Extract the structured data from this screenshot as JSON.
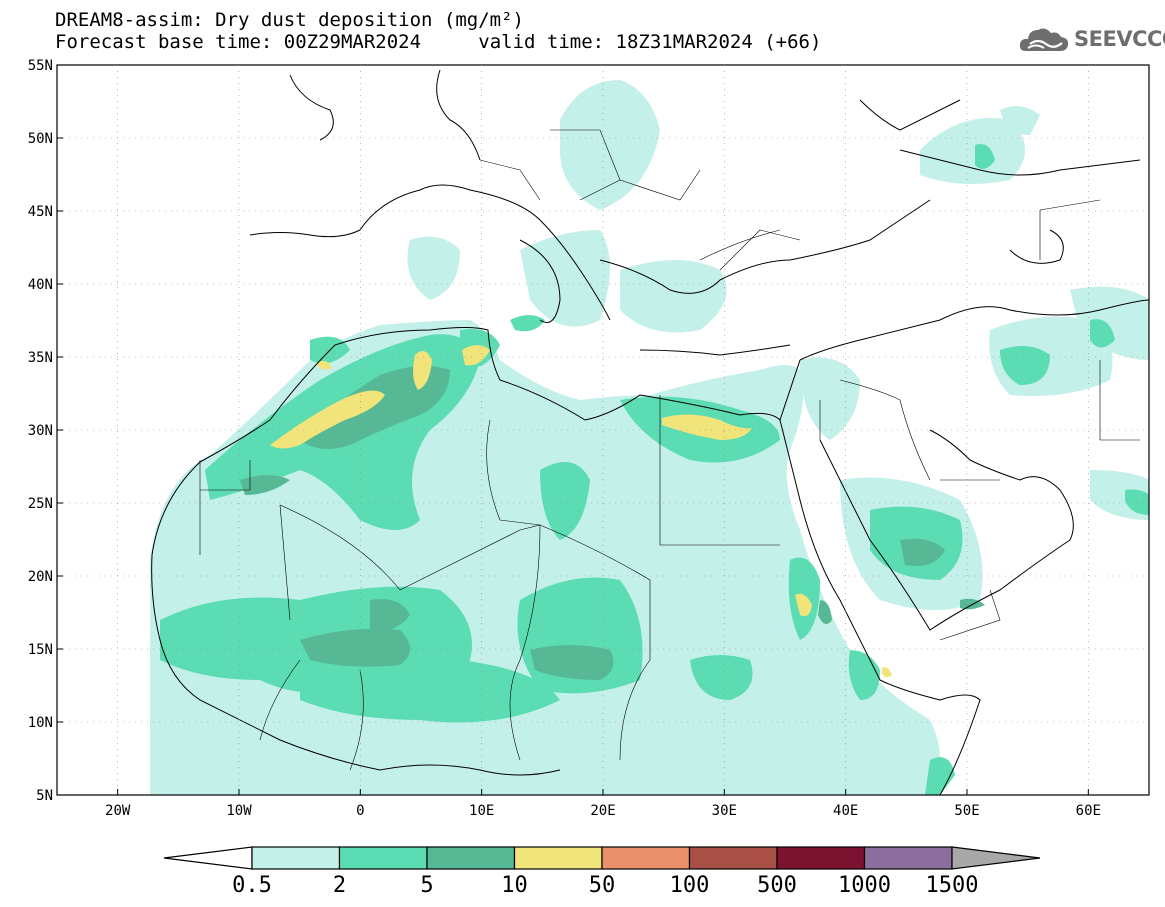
{
  "title": {
    "line1": "DREAM8-assim: Dry dust deposition (mg/m²)",
    "forecast_base": "Forecast base time: 00Z29MAR2024",
    "valid_time": "valid time: 18Z31MAR2024 (+66)"
  },
  "logo": {
    "text": "SEEVCCC",
    "icon": "cloud-icon"
  },
  "map": {
    "lon_range": [
      -25,
      65
    ],
    "lat_range": [
      5,
      55
    ],
    "lat_labels": [
      "55N",
      "50N",
      "45N",
      "40N",
      "35N",
      "30N",
      "25N",
      "20N",
      "15N",
      "10N",
      "5N"
    ],
    "lat_values": [
      55,
      50,
      45,
      40,
      35,
      30,
      25,
      20,
      15,
      10,
      5
    ],
    "lon_labels": [
      "20W",
      "10W",
      "0",
      "10E",
      "20E",
      "30E",
      "40E",
      "50E",
      "60E"
    ],
    "lon_values": [
      -20,
      -10,
      0,
      10,
      20,
      30,
      40,
      50,
      60
    ]
  },
  "colorbar": {
    "labels": [
      "0.5",
      "2",
      "5",
      "10",
      "50",
      "100",
      "500",
      "1000",
      "1500"
    ],
    "colors": [
      "#c4f0ea",
      "#5cdcb3",
      "#56b894",
      "#f0e47a",
      "#e8916a",
      "#a84f46",
      "#7a1230",
      "#8b6e9e"
    ],
    "under_color": "#ffffff",
    "over_color": "#a8a8a8"
  }
}
